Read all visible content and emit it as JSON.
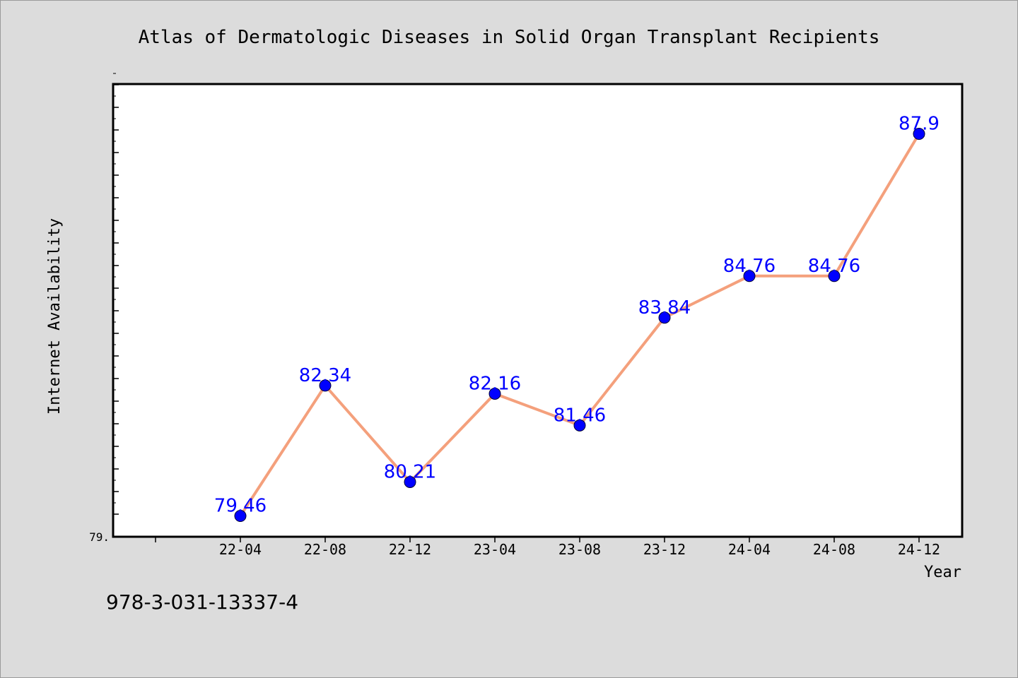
{
  "footer": {
    "isbn": "978-3-031-13337-4"
  },
  "chart_data": {
    "type": "line",
    "title": "Atlas of Dermatologic Diseases in Solid Organ Transplant Recipients",
    "xlabel": "Year",
    "ylabel": "Internet Availability",
    "categories": [
      "22-04",
      "22-08",
      "22-12",
      "23-04",
      "23-08",
      "23-12",
      "24-04",
      "24-08",
      "24-12"
    ],
    "series": [
      {
        "values": [
          79.46,
          82.34,
          80.21,
          82.16,
          81.46,
          83.84,
          84.76,
          84.76,
          87.9
        ],
        "data_labels": [
          "79.46",
          "82.34",
          "80.21",
          "82.16",
          "81.46",
          "83.84",
          "84.76",
          "84.76",
          "87.9"
        ]
      }
    ],
    "y_tick_label": "79.",
    "ylim": [
      79,
      89
    ],
    "grid": false,
    "line_color": "#f4a07c",
    "marker_color": "#0000ff",
    "label_color": "#0000ff",
    "plot_background": "#ffffff",
    "page_background": "#dcdcdc"
  }
}
